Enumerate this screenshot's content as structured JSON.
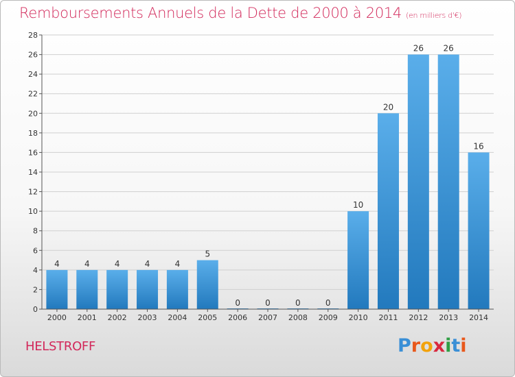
{
  "header": {
    "title": "Remboursements Annuels de la Dette de 2000 à 2014",
    "unit": "(en milliers d'€)"
  },
  "footer": {
    "commune": "HELSTROFF",
    "brand_letters": [
      "P",
      "r",
      "o",
      "x",
      "i",
      "t",
      "i"
    ],
    "brand_colors": [
      "#3a8fd6",
      "#e8581c",
      "#f2a20c",
      "#d8283f",
      "#2f9e44",
      "#3a8fd6",
      "#e8581c"
    ]
  },
  "colors": {
    "title": "#d2285a",
    "bar_top": "#5aaeea",
    "bar_bottom": "#2279bd",
    "grid": "#cfcfcf",
    "axis": "#555555",
    "text": "#333333"
  },
  "chart_data": {
    "type": "bar",
    "title": "Remboursements Annuels de la Dette de 2000 à 2014",
    "xlabel": "",
    "ylabel": "",
    "categories": [
      "2000",
      "2001",
      "2002",
      "2003",
      "2004",
      "2005",
      "2006",
      "2007",
      "2008",
      "2009",
      "2010",
      "2011",
      "2012",
      "2013",
      "2014"
    ],
    "values": [
      4,
      4,
      4,
      4,
      4,
      5,
      0,
      0,
      0,
      0,
      10,
      20,
      26,
      26,
      16
    ],
    "data_labels": [
      "4",
      "4",
      "4",
      "4",
      "4",
      "5",
      "0",
      "0",
      "0",
      "0",
      "10",
      "20",
      "26",
      "26",
      "16"
    ],
    "ylim": [
      0,
      28
    ],
    "yticks": [
      0,
      2,
      4,
      6,
      8,
      10,
      12,
      14,
      16,
      18,
      20,
      22,
      24,
      26,
      28
    ],
    "grid": true
  }
}
